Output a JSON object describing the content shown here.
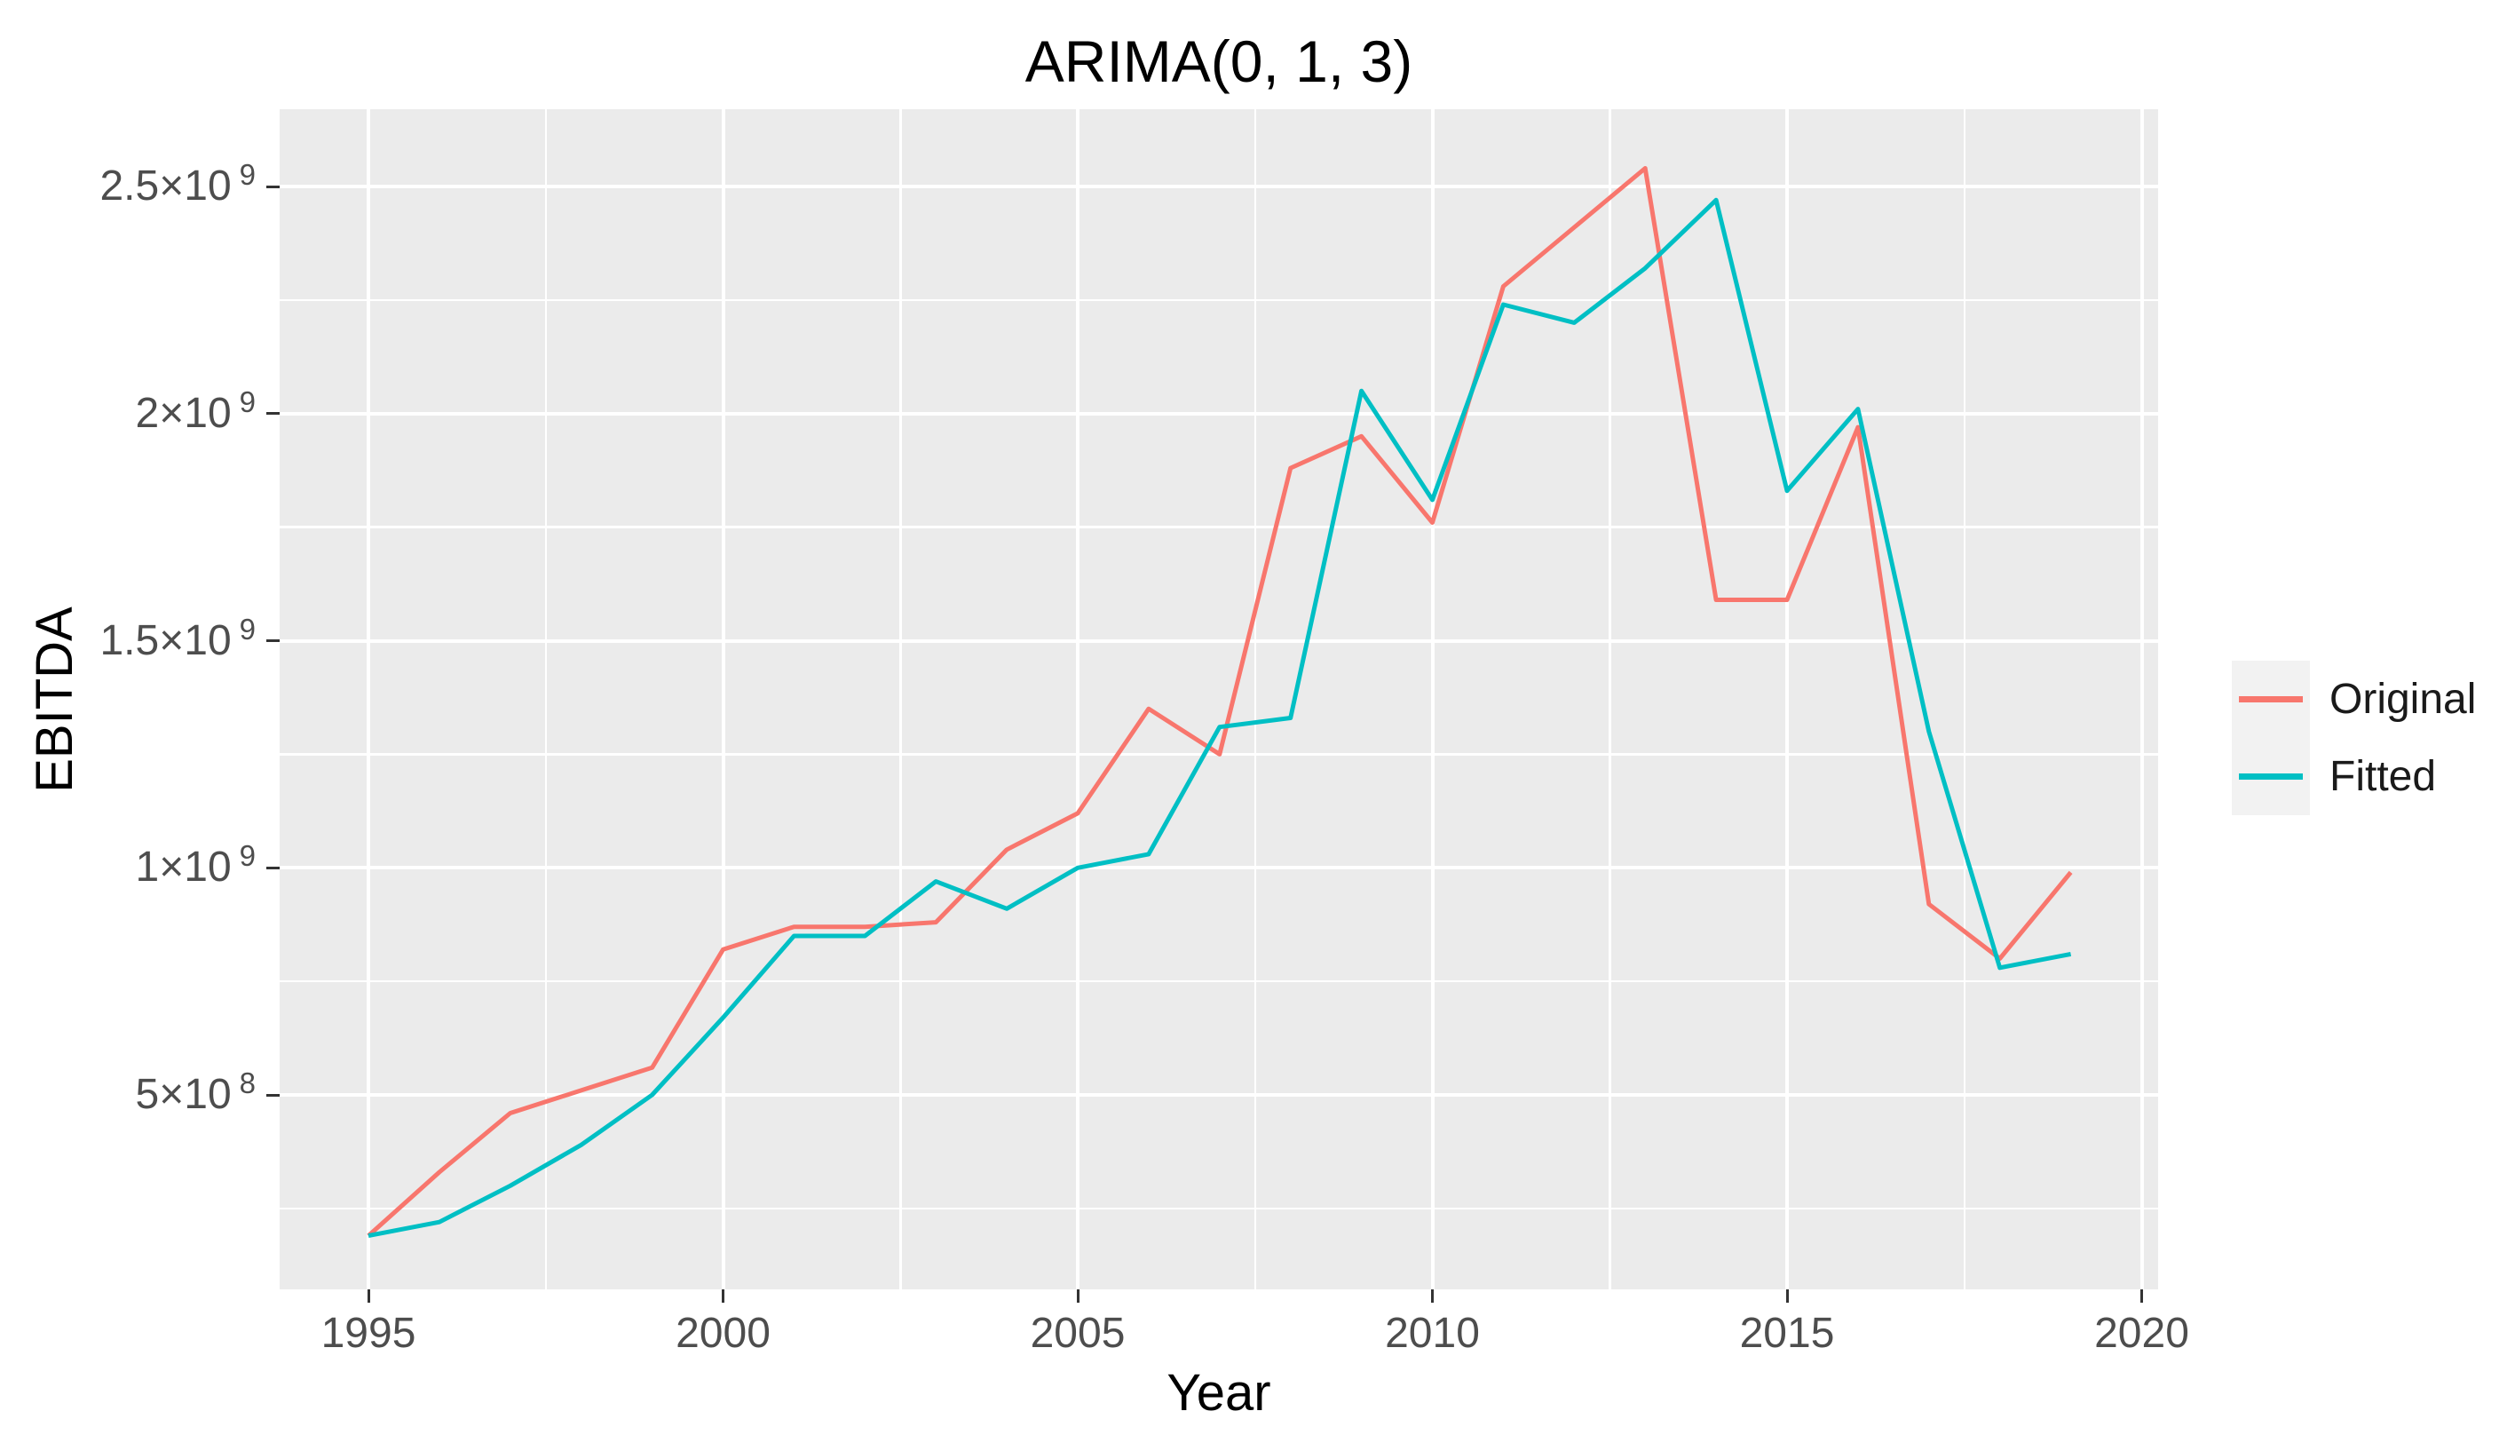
{
  "colors": {
    "panel_background": "#EBEBEB",
    "gridline": "#FFFFFF",
    "tick_text": "#4D4D4D",
    "tick_mark": "#333333",
    "title_text": "#000000",
    "legend_key_background": "#F2F2F2",
    "original_series": "#F8766D",
    "fitted_series": "#00BFC4"
  },
  "chart_data": {
    "type": "line",
    "title": "ARIMA(0, 1, 3)",
    "xlabel": "Year",
    "ylabel": "EBITDA",
    "grid": "white major+minor gridlines on grey panel",
    "legend_position": "right",
    "x_range": [
      1993.8,
      2020.2
    ],
    "y_range": [
      72000000,
      2668000000
    ],
    "x_ticks": [
      1995,
      2000,
      2005,
      2010,
      2015,
      2020
    ],
    "y_ticks": [
      {
        "label": "2.5×10^9",
        "value": 2500000000
      },
      {
        "label": "2×10^9",
        "value": 2000000000
      },
      {
        "label": "1.5×10^9",
        "value": 1500000000
      },
      {
        "label": "1×10^9",
        "value": 1000000000
      },
      {
        "label": "5×10^8",
        "value": 500000000
      }
    ],
    "x": [
      1995,
      1996,
      1997,
      1998,
      1999,
      2000,
      2001,
      2002,
      2003,
      2004,
      2005,
      2006,
      2007,
      2008,
      2009,
      2010,
      2011,
      2012,
      2013,
      2014,
      2015,
      2016,
      2017,
      2018,
      2019
    ],
    "series": [
      {
        "name": "Original",
        "color": "#F8766D",
        "values": [
          190000000,
          330000000,
          460000000,
          510000000,
          560000000,
          820000000,
          870000000,
          870000000,
          880000000,
          1040000000,
          1120000000,
          1350000000,
          1250000000,
          1880000000,
          1950000000,
          1760000000,
          2280000000,
          2410000000,
          2540000000,
          1590000000,
          1590000000,
          1970000000,
          920000000,
          800000000,
          990000000
        ]
      },
      {
        "name": "Fitted",
        "color": "#00BFC4",
        "values": [
          190000000,
          220000000,
          300000000,
          390000000,
          500000000,
          670000000,
          850000000,
          850000000,
          970000000,
          910000000,
          1000000000,
          1030000000,
          1310000000,
          1330000000,
          2050000000,
          1810000000,
          2240000000,
          2200000000,
          2320000000,
          2470000000,
          1830000000,
          2010000000,
          1300000000,
          780000000,
          810000000
        ]
      }
    ]
  }
}
